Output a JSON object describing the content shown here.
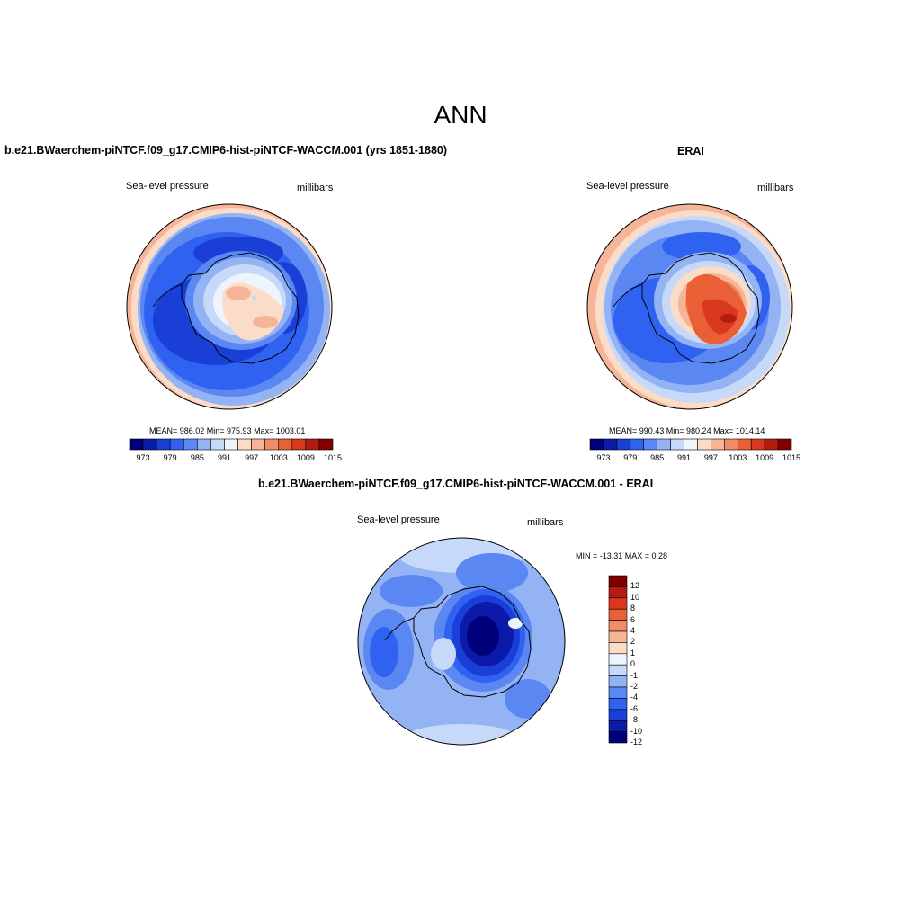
{
  "figure": {
    "title": "ANN"
  },
  "panels": [
    {
      "id": "model",
      "title": "b.e21.BWaerchem-piNTCF.f09_g17.CMIP6-hist-piNTCF-WACCM.001 (yrs 1851-1880)",
      "variable": "Sea-level pressure",
      "units": "millibars",
      "stats": "MEAN= 986.02  Min= 975.93  Max= 1003.01",
      "colorbar_labels": [
        "973",
        "979",
        "985",
        "991",
        "997",
        "1003",
        "1009",
        "1015"
      ]
    },
    {
      "id": "obs",
      "title": "ERAI",
      "variable": "Sea-level pressure",
      "units": "millibars",
      "stats": "MEAN= 990.43  Min= 980.24  Max= 1014.14",
      "colorbar_labels": [
        "973",
        "979",
        "985",
        "991",
        "997",
        "1003",
        "1009",
        "1015"
      ]
    },
    {
      "id": "diff",
      "title": "b.e21.BWaerchem-piNTCF.f09_g17.CMIP6-hist-piNTCF-WACCM.001 - ERAI",
      "variable": "Sea-level pressure",
      "units": "millibars",
      "stats": "MIN = -13.31 MAX =   0.28",
      "colorbar_labels": [
        "12",
        "10",
        "8",
        "6",
        "4",
        "2",
        "1",
        "0",
        "-1",
        "-2",
        "-4",
        "-6",
        "-8",
        "-10",
        "-12"
      ]
    }
  ],
  "colors": {
    "abs_scale": [
      "#00007a",
      "#0b1aa8",
      "#1a3fd6",
      "#2f62f0",
      "#5b87f2",
      "#93b3f5",
      "#c6d9f8",
      "#eef4fb",
      "#fbdcc8",
      "#f6b597",
      "#f08d66",
      "#ea5f36",
      "#d9381c",
      "#b41c10",
      "#800000"
    ],
    "diff_scale": [
      "#800000",
      "#b41c10",
      "#d9381c",
      "#ea5f36",
      "#f08d66",
      "#f6b597",
      "#fbdcc8",
      "#eef4fb",
      "#c6d9f8",
      "#93b3f5",
      "#5b87f2",
      "#2f62f0",
      "#1a3fd6",
      "#0b1aa8",
      "#00007a"
    ]
  }
}
